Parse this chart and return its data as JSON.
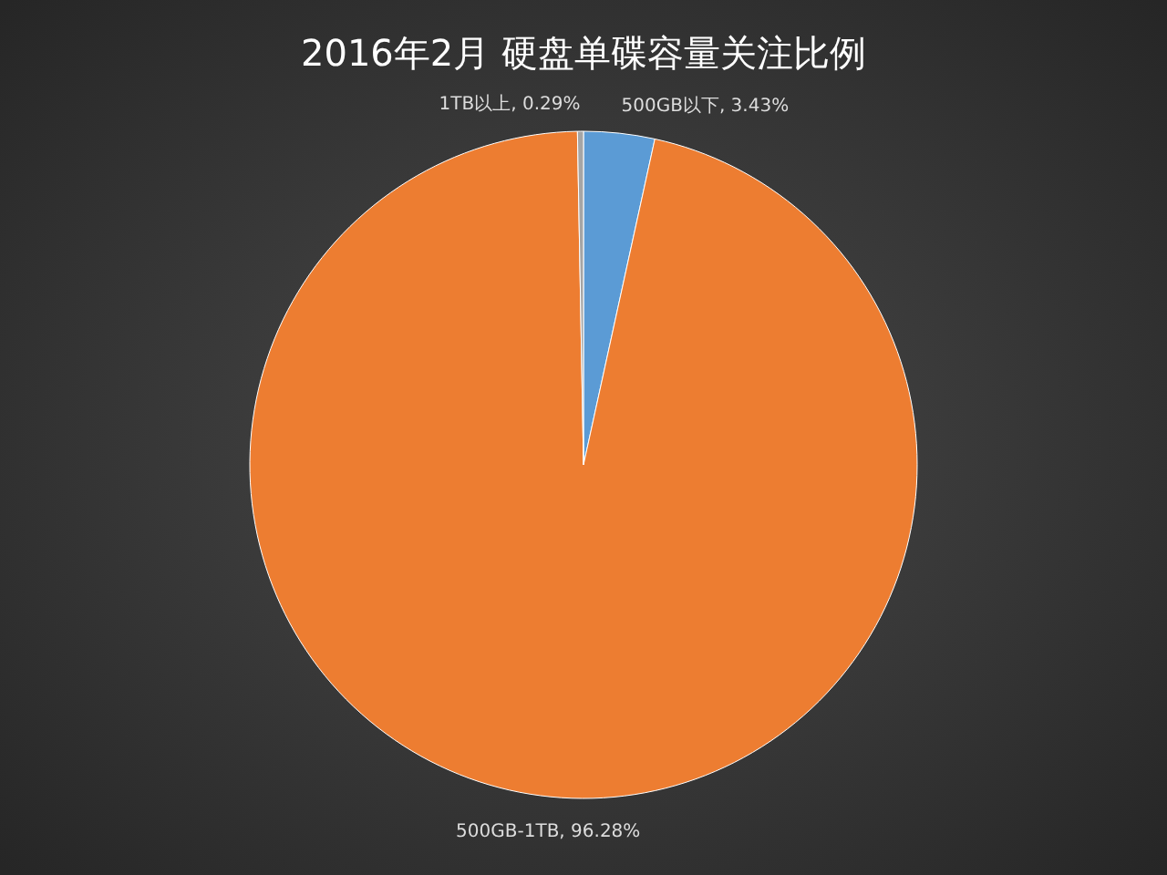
{
  "chart_data": {
    "type": "pie",
    "title": "2016年2月 硬盘单碟容量关注比例",
    "categories": [
      "500GB以下",
      "500GB-1TB",
      "1TB以上"
    ],
    "values": [
      3.43,
      96.28,
      0.29
    ],
    "value_labels": [
      "3.43%",
      "96.28%",
      "0.29%"
    ],
    "colors": [
      "#5b9bd5",
      "#ed7d31",
      "#a5a5a5"
    ]
  }
}
